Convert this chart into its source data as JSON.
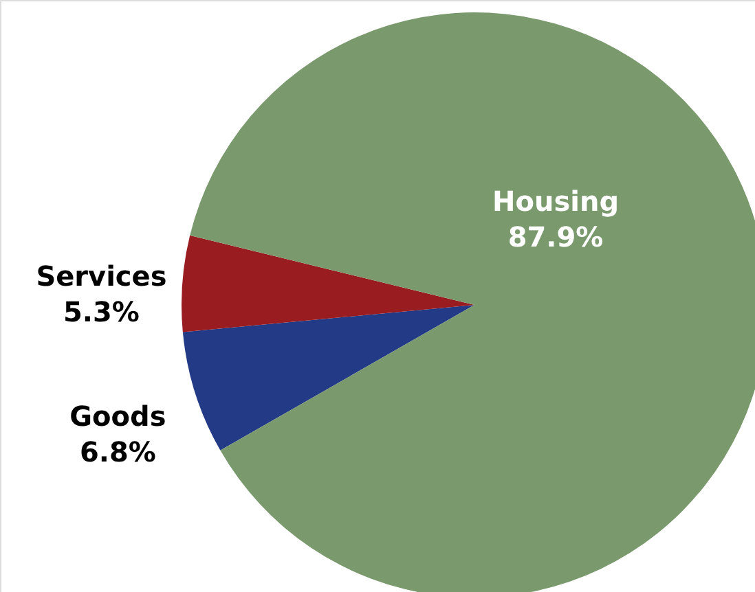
{
  "chart_data": {
    "type": "pie",
    "categories": [
      "Goods",
      "Services",
      "Housing"
    ],
    "values": [
      6.8,
      5.3,
      87.9
    ],
    "colors": [
      "#233a86",
      "#991c21",
      "#7a9a6d"
    ],
    "value_labels": [
      "6.8%",
      "5.3%",
      "87.9%"
    ]
  }
}
